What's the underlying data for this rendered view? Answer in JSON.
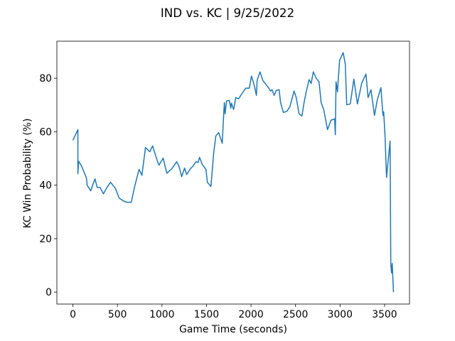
{
  "chart_data": {
    "type": "line",
    "title": "IND vs. KC | 9/25/2022",
    "xlabel": "Game Time (seconds)",
    "ylabel": "KC Win Probability (%)",
    "x": [
      0,
      56,
      56,
      64,
      96,
      152,
      160,
      200,
      248,
      272,
      304,
      343,
      383,
      423,
      479,
      519,
      567,
      607,
      655,
      695,
      743,
      775,
      815,
      863,
      895,
      935,
      966,
      1014,
      1054,
      1110,
      1166,
      1190,
      1222,
      1254,
      1278,
      1318,
      1350,
      1382,
      1406,
      1422,
      1454,
      1494,
      1510,
      1550,
      1581,
      1605,
      1637,
      1677,
      1693,
      1701,
      1709,
      1725,
      1757,
      1773,
      1781,
      1805,
      1829,
      1861,
      1901,
      1941,
      1981,
      2005,
      2037,
      2061,
      2069,
      2101,
      2133,
      2196,
      2220,
      2236,
      2260,
      2284,
      2316,
      2332,
      2364,
      2404,
      2436,
      2484,
      2508,
      2540,
      2572,
      2596,
      2620,
      2652,
      2676,
      2700,
      2732,
      2764,
      2788,
      2819,
      2859,
      2899,
      2939,
      2947,
      2955,
      2971,
      2995,
      3035,
      3059,
      3075,
      3115,
      3155,
      3195,
      3243,
      3291,
      3315,
      3347,
      3387,
      3419,
      3459,
      3482,
      3490,
      3506,
      3522,
      3562,
      3570,
      3578,
      3586,
      3600
    ],
    "series": [
      {
        "name": "KC Win Probability",
        "color": "#1f77b4",
        "values": [
          56.8,
          60.8,
          44.3,
          49,
          47.2,
          42.7,
          40,
          37.9,
          42.4,
          39.2,
          39.2,
          36.8,
          39.2,
          41.1,
          38.7,
          35.2,
          34.1,
          33.6,
          33.6,
          39.7,
          45.9,
          43.7,
          54.1,
          52.5,
          54.7,
          50.4,
          47.5,
          50.1,
          44.5,
          46.1,
          48.8,
          47.2,
          43.2,
          46.4,
          44,
          46.1,
          47.2,
          48.8,
          48.5,
          50.4,
          47.7,
          45.9,
          41.1,
          39.5,
          52,
          58.4,
          59.7,
          55.7,
          66.4,
          70.9,
          66.7,
          71.5,
          71.7,
          68.8,
          70.7,
          68.3,
          72.8,
          72.3,
          74.4,
          76.3,
          76.3,
          80.8,
          77.3,
          73.6,
          79.2,
          82.4,
          79.2,
          76.5,
          75.2,
          75.7,
          73.6,
          75.5,
          75.7,
          70.9,
          67.2,
          67.7,
          69.3,
          75.2,
          72.8,
          66.7,
          65.9,
          70.9,
          74.9,
          79.5,
          78.1,
          82.4,
          80,
          78.7,
          70.9,
          68,
          60.8,
          64.3,
          64.8,
          58.9,
          78.7,
          74.9,
          86.7,
          89.6,
          85.3,
          70.1,
          70.4,
          79.7,
          70.4,
          78.1,
          81.6,
          72.8,
          75.7,
          66.1,
          72,
          76.5,
          66.1,
          67.5,
          57.9,
          42.9,
          56.5,
          10.7,
          7.2,
          10.7,
          0
        ]
      }
    ],
    "xlim": [
      -180,
      3780
    ],
    "ylim": [
      -4.47,
      93.87
    ],
    "xticks": [
      0,
      500,
      1000,
      1500,
      2000,
      2500,
      3000,
      3500
    ],
    "yticks": [
      0,
      20,
      40,
      60,
      80
    ],
    "grid": false
  }
}
